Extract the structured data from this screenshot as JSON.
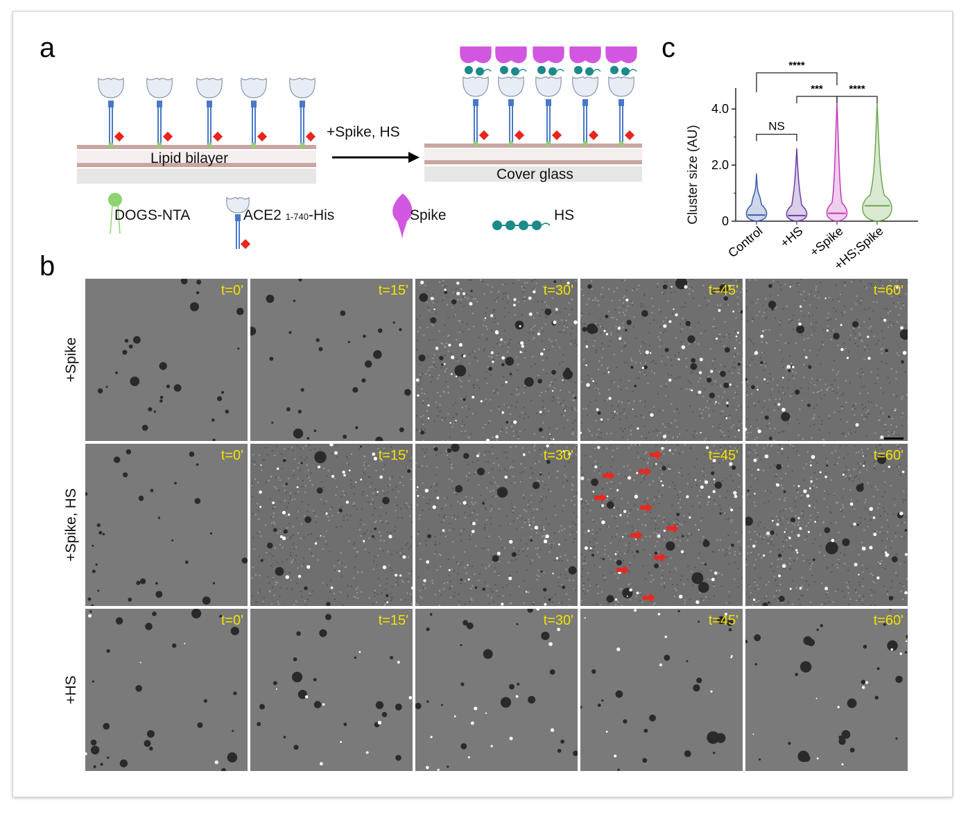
{
  "panels": {
    "a": "a",
    "b": "b",
    "c": "c"
  },
  "schematic": {
    "left_membrane_label": "Lipid bilayer",
    "arrow_label": "+Spike, HS",
    "right_substrate_label": "Cover glass",
    "legend": {
      "dogs_nta": "DOGS-NTA",
      "ace2_main": "ACE2",
      "ace2_sub": "1-740",
      "ace2_tail": "-His",
      "spike": "Spike",
      "hs": "HS"
    },
    "colors": {
      "ace2": "#4a78c8",
      "his": "#e8241c",
      "nta": "#8ed36e",
      "spike": "#d257e0",
      "hs": "#1b8a88",
      "lipid": "#c9a7a0",
      "glass": "#e0e0e0"
    }
  },
  "micrographs": {
    "rows": [
      "+Spike",
      "+Spike, HS",
      "+HS"
    ],
    "timepoints": [
      "t=0'",
      "t=15'",
      "t=30'",
      "t=45'",
      "t=60'"
    ],
    "time_label_color": "#f3e300",
    "arrow_color": "#e62a22"
  },
  "chart_data": {
    "type": "violin",
    "categories": [
      "Control",
      "+HS",
      "+Spike",
      "+HS;Spike"
    ],
    "ylabel": "Cluster size (AU)",
    "ylim": [
      0,
      4.5
    ],
    "yticks": [
      "0",
      "2.0",
      "4.0"
    ],
    "ytick_values": [
      0,
      2.0,
      4.0
    ],
    "series": [
      {
        "category": "Control",
        "color": "#3c5aa8",
        "median": 0.22,
        "max": 1.7
      },
      {
        "category": "+HS",
        "color": "#6a3aa6",
        "median": 0.2,
        "max": 2.6
      },
      {
        "category": "+Spike",
        "color": "#c23bb6",
        "median": 0.28,
        "max": 4.2
      },
      {
        "category": "+HS;Spike",
        "color": "#6aa84a",
        "median": 0.55,
        "max": 4.2
      }
    ],
    "significance": [
      {
        "pair": [
          "Control",
          "+Spike"
        ],
        "label": "****"
      },
      {
        "pair": [
          "+HS",
          "+Spike"
        ],
        "label": "***"
      },
      {
        "pair": [
          "+Spike",
          "+HS;Spike"
        ],
        "label": "****"
      },
      {
        "pair": [
          "Control",
          "+HS"
        ],
        "label": "NS"
      }
    ]
  }
}
